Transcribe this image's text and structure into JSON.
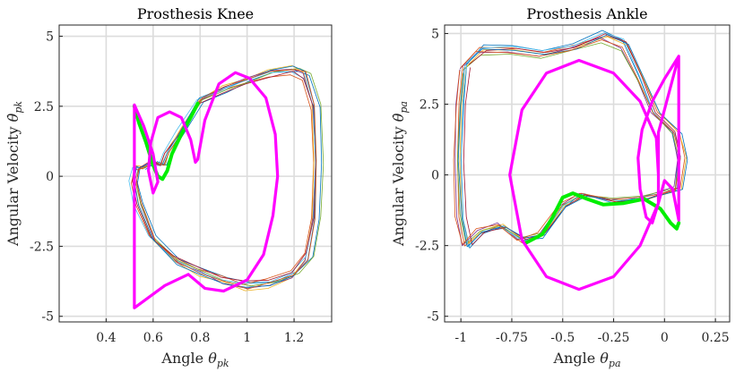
{
  "chart_data": [
    {
      "type": "line",
      "title": "Prosthesis Knee",
      "xlabel": "Angle θpk",
      "ylabel": "Angular Velocity θ̇pk",
      "xlabel_parts": {
        "main": "Angle ",
        "sym": "θ",
        "sub": "pk"
      },
      "ylabel_parts": {
        "main": "Angular Velocity ",
        "sym": "θ̇",
        "sub": "pk"
      },
      "xlim": [
        0.2,
        1.36
      ],
      "ylim": [
        -5.2,
        5.4
      ],
      "xticks": [
        0.4,
        0.6,
        0.8,
        1.0,
        1.2
      ],
      "xtick_labels": [
        "0.4",
        "0.6",
        "0.8",
        "1",
        "1.2"
      ],
      "yticks": [
        -5,
        -2.5,
        0,
        2.5,
        5
      ],
      "ytick_labels": [
        "-5",
        "-2.5",
        "0",
        "2.5",
        "5"
      ],
      "grid": true,
      "series": [
        {
          "name": "measured trials",
          "kind": "trials",
          "colors": [
            "#0072BD",
            "#D95319",
            "#EDB120",
            "#7E2F8E",
            "#77AC30",
            "#4DBEEE",
            "#A2142F",
            "#0072BD",
            "#D95319"
          ],
          "points": [
            [
              0.55,
              0.3
            ],
            [
              0.6,
              0.5
            ],
            [
              0.64,
              0.4
            ],
            [
              0.66,
              0.8
            ],
            [
              0.72,
              1.6
            ],
            [
              0.8,
              2.7
            ],
            [
              0.9,
              3.1
            ],
            [
              1.0,
              3.4
            ],
            [
              1.1,
              3.7
            ],
            [
              1.2,
              3.8
            ],
            [
              1.25,
              3.6
            ],
            [
              1.29,
              2.5
            ],
            [
              1.3,
              0.5
            ],
            [
              1.29,
              -1.5
            ],
            [
              1.26,
              -2.9
            ],
            [
              1.2,
              -3.5
            ],
            [
              1.1,
              -3.8
            ],
            [
              1.0,
              -3.9
            ],
            [
              0.9,
              -3.7
            ],
            [
              0.8,
              -3.4
            ],
            [
              0.7,
              -3.0
            ],
            [
              0.6,
              -2.2
            ],
            [
              0.54,
              -1.0
            ],
            [
              0.52,
              -0.2
            ],
            [
              0.53,
              0.3
            ],
            [
              0.55,
              0.3
            ]
          ]
        },
        {
          "name": "model-green",
          "color": "#00EE00",
          "points": [
            [
              0.52,
              2.5
            ],
            [
              0.54,
              1.9
            ],
            [
              0.57,
              1.2
            ],
            [
              0.6,
              0.4
            ],
            [
              0.62,
              0.0
            ],
            [
              0.64,
              -0.1
            ],
            [
              0.66,
              0.2
            ],
            [
              0.68,
              0.8
            ],
            [
              0.72,
              1.5
            ],
            [
              0.76,
              2.1
            ],
            [
              0.79,
              2.6
            ]
          ]
        },
        {
          "name": "model-magenta",
          "color": "#FF00FF",
          "points": [
            [
              0.52,
              2.55
            ],
            [
              0.52,
              -4.7
            ],
            [
              0.65,
              -3.9
            ],
            [
              0.75,
              -3.5
            ],
            [
              0.82,
              -4.0
            ],
            [
              0.9,
              -4.1
            ],
            [
              1.0,
              -3.7
            ],
            [
              1.07,
              -2.8
            ],
            [
              1.11,
              -1.4
            ],
            [
              1.13,
              0.0
            ],
            [
              1.12,
              1.5
            ],
            [
              1.08,
              2.8
            ],
            [
              1.01,
              3.5
            ],
            [
              0.95,
              3.7
            ],
            [
              0.88,
              3.3
            ],
            [
              0.82,
              2.0
            ],
            [
              0.79,
              0.6
            ],
            [
              0.78,
              0.5
            ],
            [
              0.76,
              1.3
            ],
            [
              0.72,
              2.1
            ],
            [
              0.67,
              2.3
            ],
            [
              0.62,
              2.1
            ],
            [
              0.59,
              1.2
            ],
            [
              0.58,
              0.2
            ],
            [
              0.6,
              -0.6
            ],
            [
              0.62,
              -0.2
            ],
            [
              0.6,
              0.8
            ],
            [
              0.56,
              1.8
            ],
            [
              0.52,
              2.55
            ]
          ]
        }
      ]
    },
    {
      "type": "line",
      "title": "Prosthesis Ankle",
      "xlabel": "Angle θpa",
      "ylabel": "Angular Velocity θ̇pa",
      "xlabel_parts": {
        "main": "Angle ",
        "sym": "θ",
        "sub": "pa"
      },
      "ylabel_parts": {
        "main": "Angular Velocity ",
        "sym": "θ̇",
        "sub": "pa"
      },
      "xlim": [
        -1.08,
        0.32
      ],
      "ylim": [
        -5.2,
        5.3
      ],
      "xticks": [
        -1,
        -0.75,
        -0.5,
        -0.25,
        0,
        0.25
      ],
      "xtick_labels": [
        "-1",
        "-0.75",
        "-0.5",
        "-0.25",
        "0",
        "0.25"
      ],
      "yticks": [
        -5,
        -2.5,
        0,
        2.5,
        5
      ],
      "ytick_labels": [
        "-5",
        "-2.5",
        "0",
        "2.5",
        "5"
      ],
      "grid": true,
      "series": [
        {
          "name": "measured trials",
          "kind": "trials",
          "colors": [
            "#0072BD",
            "#D95319",
            "#EDB120",
            "#7E2F8E",
            "#77AC30",
            "#4DBEEE",
            "#A2142F",
            "#0072BD",
            "#D95319"
          ],
          "points": [
            [
              -0.98,
              3.8
            ],
            [
              -0.9,
              4.4
            ],
            [
              -0.75,
              4.4
            ],
            [
              -0.6,
              4.3
            ],
            [
              -0.45,
              4.5
            ],
            [
              -0.3,
              4.9
            ],
            [
              -0.2,
              4.6
            ],
            [
              -0.12,
              3.4
            ],
            [
              -0.05,
              2.2
            ],
            [
              0.05,
              1.5
            ],
            [
              0.08,
              0.6
            ],
            [
              0.06,
              -0.5
            ],
            [
              -0.1,
              -0.8
            ],
            [
              -0.25,
              -0.9
            ],
            [
              -0.4,
              -0.7
            ],
            [
              -0.5,
              -1.1
            ],
            [
              -0.6,
              -2.1
            ],
            [
              -0.7,
              -2.3
            ],
            [
              -0.8,
              -1.8
            ],
            [
              -0.9,
              -2.0
            ],
            [
              -0.97,
              -2.5
            ],
            [
              -1.0,
              -1.5
            ],
            [
              -1.01,
              0.5
            ],
            [
              -1.0,
              2.5
            ],
            [
              -0.98,
              3.8
            ]
          ]
        },
        {
          "name": "model-green",
          "color": "#00EE00",
          "points": [
            [
              -0.68,
              -2.4
            ],
            [
              -0.6,
              -2.1
            ],
            [
              -0.55,
              -1.5
            ],
            [
              -0.5,
              -0.8
            ],
            [
              -0.45,
              -0.65
            ],
            [
              -0.38,
              -0.85
            ],
            [
              -0.3,
              -1.05
            ],
            [
              -0.2,
              -1.0
            ],
            [
              -0.1,
              -0.85
            ],
            [
              -0.02,
              -1.2
            ],
            [
              0.03,
              -1.7
            ],
            [
              0.06,
              -1.9
            ],
            [
              0.07,
              -1.7
            ]
          ]
        },
        {
          "name": "model-magenta",
          "color": "#FF00FF",
          "points": [
            [
              0.07,
              4.2
            ],
            [
              0.07,
              -1.6
            ],
            [
              0.04,
              -0.5
            ],
            [
              0.0,
              -0.2
            ],
            [
              -0.03,
              -1.0
            ],
            [
              -0.06,
              -1.7
            ],
            [
              -0.09,
              -1.5
            ],
            [
              -0.12,
              -0.5
            ],
            [
              -0.13,
              0.6
            ],
            [
              -0.11,
              1.6
            ],
            [
              -0.06,
              2.6
            ],
            [
              0.0,
              3.4
            ],
            [
              0.07,
              4.2
            ],
            [
              0.07,
              4.2
            ],
            [
              -0.03,
              1.5
            ],
            [
              -0.03,
              -1.0
            ],
            [
              -0.12,
              -2.5
            ],
            [
              -0.25,
              -3.6
            ],
            [
              -0.42,
              -4.05
            ],
            [
              -0.58,
              -3.6
            ],
            [
              -0.7,
              -2.3
            ],
            [
              -0.76,
              0.0
            ],
            [
              -0.7,
              2.3
            ],
            [
              -0.58,
              3.6
            ],
            [
              -0.42,
              4.05
            ],
            [
              -0.25,
              3.6
            ],
            [
              -0.12,
              2.6
            ],
            [
              -0.04,
              1.3
            ],
            [
              -0.03,
              0.0
            ]
          ]
        }
      ]
    }
  ]
}
